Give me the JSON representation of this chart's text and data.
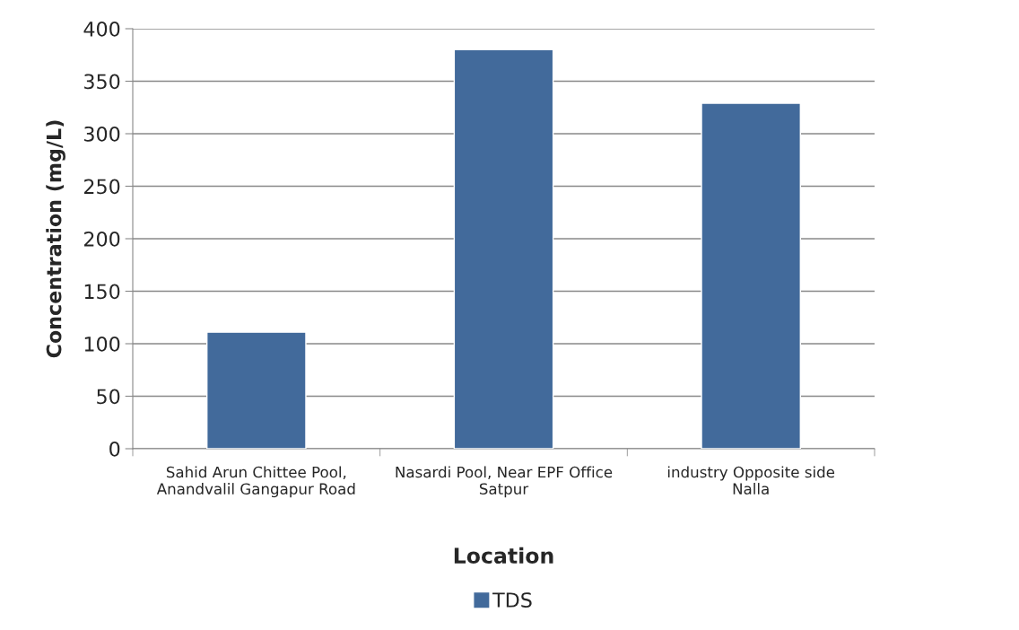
{
  "chart_data": {
    "type": "bar",
    "xlabel": "Location",
    "ylabel": "Concentration (mg/L)",
    "categories": [
      "Sahid Arun Chittee Pool,\nAnandvalil Gangapur Road",
      "Nasardi Pool, Near EPF Office\nSatpur",
      "industry Opposite side\nNalla"
    ],
    "series": [
      {
        "name": "TDS",
        "color": "#426a9b",
        "values": [
          111,
          380,
          329
        ]
      }
    ],
    "ylim": [
      0,
      400
    ],
    "yticks": [
      0,
      50,
      100,
      150,
      200,
      250,
      300,
      350,
      400
    ],
    "grid": "y",
    "legend": "bottom"
  }
}
